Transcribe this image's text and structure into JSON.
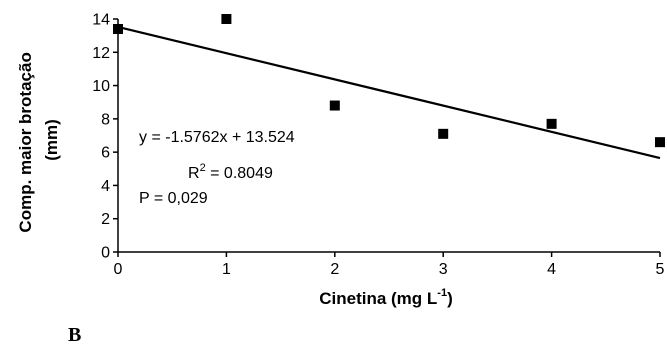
{
  "chart_data": {
    "type": "scatter",
    "x": [
      0,
      1,
      2,
      3,
      4,
      5
    ],
    "y": [
      13.4,
      14.0,
      8.8,
      7.1,
      7.7,
      6.6
    ],
    "xlim": [
      0,
      5
    ],
    "ylim": [
      0,
      14
    ],
    "x_ticks": [
      "0",
      "1",
      "2",
      "3",
      "4",
      "5"
    ],
    "y_ticks": [
      "0",
      "2",
      "4",
      "6",
      "8",
      "10",
      "12",
      "14"
    ],
    "xlabel": {
      "main": "Cinetina (mg L",
      "superscript": "-1",
      "close": ")"
    },
    "ylabel": {
      "line1": "Comp. maior brotação",
      "line2": "(mm)"
    },
    "trendline": {
      "slope": -1.5762,
      "intercept": 13.524
    },
    "annotations": {
      "equation": "y = -1.5762x + 13.524",
      "r2_prefix": "R",
      "r2_sup": "2",
      "r2_value": " = 0.8049",
      "p_value": "P = 0,029"
    },
    "panel_label": "B",
    "grid": false,
    "legend": "none",
    "marker": "square",
    "color": "#000000"
  }
}
